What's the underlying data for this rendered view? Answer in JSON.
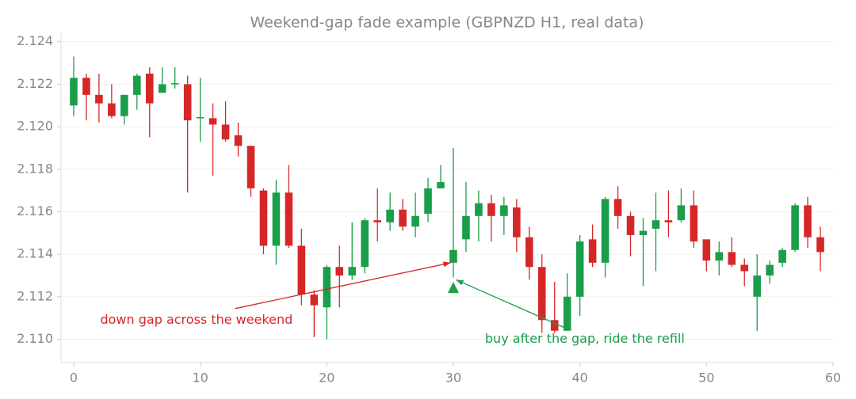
{
  "chart_data": {
    "type": "candlestick",
    "title": "Weekend-gap fade example (GBPNZD H1, real data)",
    "x": [
      0,
      1,
      2,
      3,
      4,
      5,
      6,
      7,
      8,
      9,
      10,
      11,
      12,
      13,
      14,
      15,
      16,
      17,
      18,
      19,
      20,
      21,
      22,
      23,
      24,
      25,
      26,
      27,
      28,
      29,
      30,
      31,
      32,
      33,
      34,
      35,
      36,
      37,
      38,
      39,
      40,
      41,
      42,
      43,
      44,
      45,
      46,
      47,
      48,
      49,
      50,
      51,
      52,
      53,
      54,
      55,
      56,
      57,
      58,
      59
    ],
    "open": [
      2.121,
      2.1223,
      2.1215,
      2.1211,
      2.1205,
      2.1215,
      2.1225,
      2.1216,
      2.122,
      2.122,
      2.1204,
      2.1204,
      2.1201,
      2.1196,
      2.1191,
      2.117,
      2.1144,
      2.1169,
      2.1144,
      2.1121,
      2.1115,
      2.1134,
      2.113,
      2.1134,
      2.1156,
      2.1155,
      2.1161,
      2.1153,
      2.1159,
      2.1171,
      2.1136,
      2.1147,
      2.1158,
      2.1164,
      2.1158,
      2.1162,
      2.1148,
      2.1134,
      2.1109,
      2.1104,
      2.112,
      2.1147,
      2.1136,
      2.1166,
      2.1158,
      2.1149,
      2.1152,
      2.1156,
      2.1156,
      2.1163,
      2.1147,
      2.1137,
      2.1141,
      2.1135,
      2.112,
      2.113,
      2.1136,
      2.1142,
      2.1163,
      2.1148
    ],
    "high": [
      2.1233,
      2.1225,
      2.1225,
      2.122,
      2.1215,
      2.1225,
      2.1228,
      2.1228,
      2.1228,
      2.1224,
      2.1223,
      2.1211,
      2.1212,
      2.1202,
      2.1191,
      2.1171,
      2.1175,
      2.1182,
      2.1152,
      2.1123,
      2.1135,
      2.1144,
      2.1155,
      2.1157,
      2.1171,
      2.1169,
      2.1166,
      2.1169,
      2.1176,
      2.1182,
      2.119,
      2.1174,
      2.117,
      2.1168,
      2.1167,
      2.1166,
      2.1153,
      2.114,
      2.1127,
      2.1131,
      2.1149,
      2.1154,
      2.1167,
      2.1172,
      2.116,
      2.1157,
      2.1169,
      2.117,
      2.1171,
      2.117,
      2.1147,
      2.1146,
      2.1148,
      2.1138,
      2.114,
      2.1137,
      2.1143,
      2.1164,
      2.1167,
      2.1153
    ],
    "low": [
      2.1205,
      2.1203,
      2.1202,
      2.1204,
      2.1201,
      2.1208,
      2.1195,
      2.1216,
      2.1218,
      2.1169,
      2.1193,
      2.1177,
      2.1193,
      2.1186,
      2.1167,
      2.114,
      2.1135,
      2.1143,
      2.1116,
      2.1101,
      2.11,
      2.1115,
      2.1128,
      2.1131,
      2.1146,
      2.1151,
      2.1151,
      2.1148,
      2.1155,
      2.1171,
      2.1129,
      2.1141,
      2.1146,
      2.1146,
      2.1149,
      2.1141,
      2.1128,
      2.1103,
      2.1103,
      2.1104,
      2.1111,
      2.1134,
      2.1129,
      2.1152,
      2.1139,
      2.1125,
      2.1132,
      2.1148,
      2.1155,
      2.1143,
      2.1132,
      2.113,
      2.1134,
      2.1125,
      2.1104,
      2.1126,
      2.1134,
      2.1141,
      2.1143,
      2.1132
    ],
    "close": [
      2.1223,
      2.1215,
      2.1211,
      2.1205,
      2.1215,
      2.1224,
      2.1211,
      2.122,
      2.12205,
      2.1203,
      2.12045,
      2.1201,
      2.1194,
      2.1191,
      2.1171,
      2.1144,
      2.1169,
      2.1144,
      2.1121,
      2.1116,
      2.1134,
      2.113,
      2.1134,
      2.1156,
      2.1155,
      2.1161,
      2.1153,
      2.1158,
      2.1171,
      2.1174,
      2.1142,
      2.1158,
      2.1164,
      2.1158,
      2.1163,
      2.1148,
      2.1134,
      2.1109,
      2.1104,
      2.112,
      2.1146,
      2.1136,
      2.1166,
      2.1158,
      2.1149,
      2.1151,
      2.1156,
      2.1155,
      2.1163,
      2.1146,
      2.1137,
      2.1141,
      2.1135,
      2.1132,
      2.113,
      2.1135,
      2.1142,
      2.1163,
      2.1148,
      2.1141
    ],
    "up_color": "#1a9e4a",
    "down_color": "#d62728",
    "xlim": [
      -1,
      60
    ],
    "ylim": [
      2.1089,
      2.1244
    ],
    "xticks": [
      0,
      10,
      20,
      30,
      40,
      50,
      60
    ],
    "yticks": [
      {
        "value": 2.11,
        "label": "2.110"
      },
      2.112,
      2.114,
      2.116,
      2.118,
      {
        "value": 2.12,
        "label": "2.120"
      },
      2.122,
      2.124
    ],
    "grid": true,
    "markers": [
      {
        "x": 30,
        "y": 2.1124,
        "color": "#1a9e4a"
      }
    ],
    "annotations": [
      {
        "text": "down gap across the weekend",
        "color": "#d62728",
        "xy": [
          29.8,
          2.1136
        ],
        "xytext": [
          2.1,
          2.1109
        ]
      },
      {
        "text": "buy after the gap, ride the refill",
        "color": "#1a9e4a",
        "xy": [
          30.2,
          2.1128
        ],
        "xytext": [
          32.5,
          2.11
        ]
      }
    ]
  }
}
